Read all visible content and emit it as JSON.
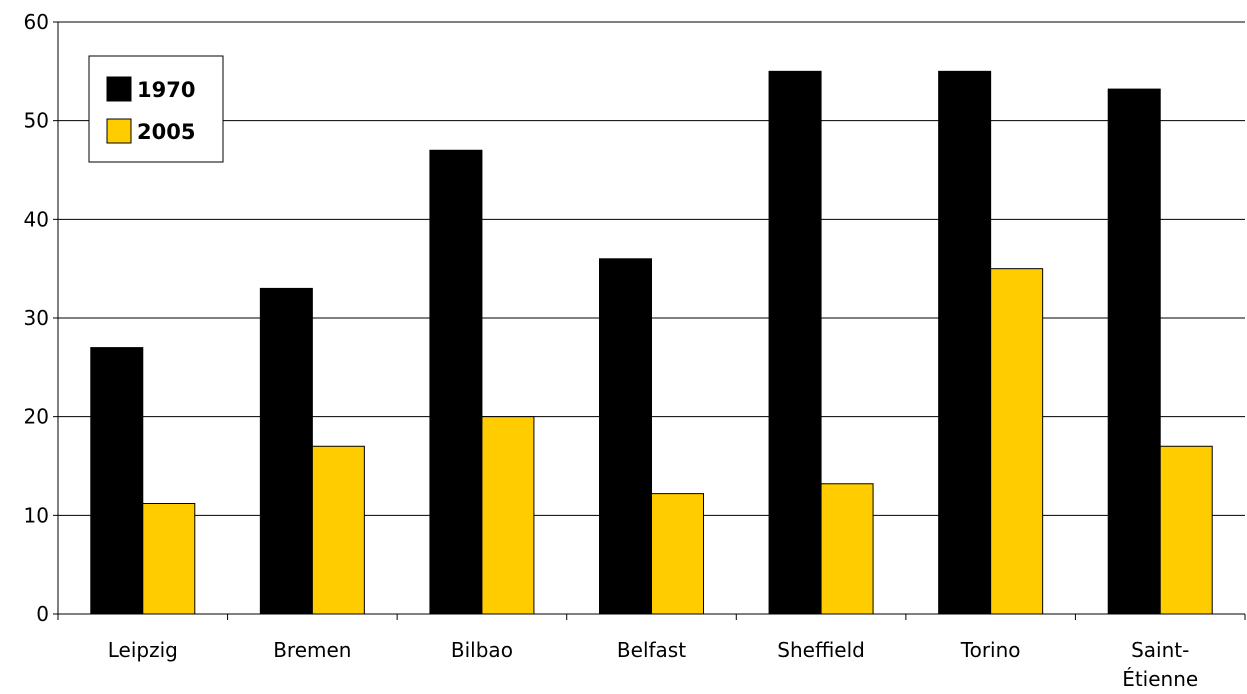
{
  "chart_data": {
    "type": "bar",
    "categories": [
      "Leipzig",
      "Bremen",
      "Bilbao",
      "Belfast",
      "Sheffield",
      "Torino",
      "Saint-Étienne"
    ],
    "category_label_lines": [
      [
        "Leipzig"
      ],
      [
        "Bremen"
      ],
      [
        "Bilbao"
      ],
      [
        "Belfast"
      ],
      [
        "Sheffield"
      ],
      [
        "Torino"
      ],
      [
        "Saint-",
        "Étienne"
      ]
    ],
    "series": [
      {
        "name": "1970",
        "color": "#000000",
        "values": [
          27,
          33,
          47,
          36,
          55,
          55,
          53.2
        ]
      },
      {
        "name": "2005",
        "color": "#ffcc00",
        "values": [
          11.2,
          17,
          20,
          12.2,
          13.2,
          35,
          17
        ]
      }
    ],
    "y_ticks": [
      0,
      10,
      20,
      30,
      40,
      50,
      60
    ],
    "ylim": [
      0,
      60
    ],
    "title": "",
    "xlabel": "",
    "ylabel": "",
    "grid": true,
    "legend_position": "top-left"
  }
}
